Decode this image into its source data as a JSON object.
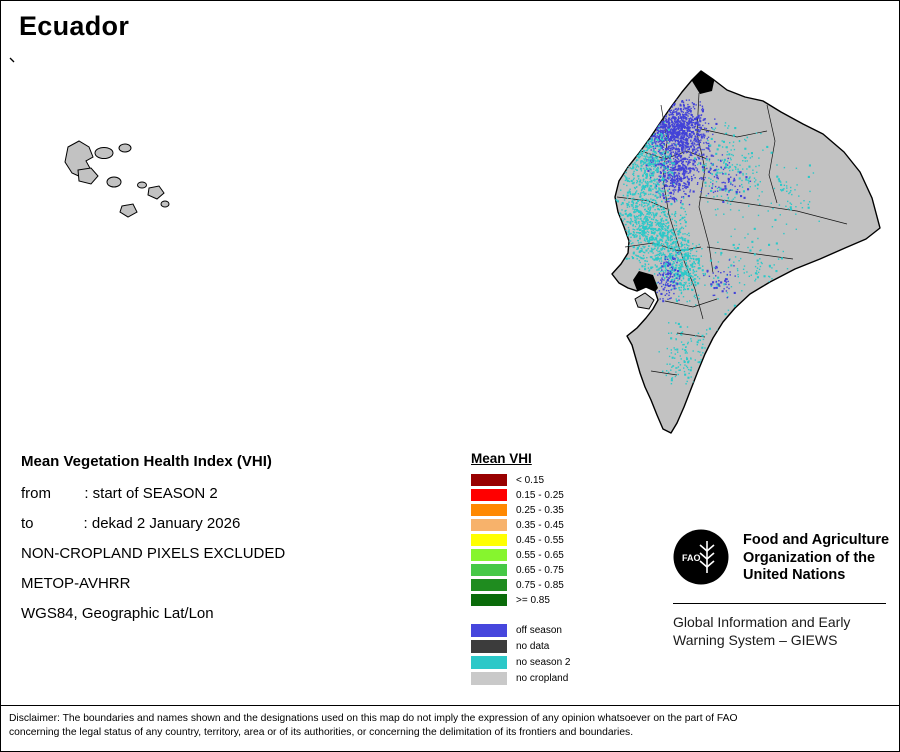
{
  "title": "Ecuador",
  "info": {
    "heading": "Mean Vegetation Health Index (VHI)",
    "lines": [
      "from        : start of SEASON 2",
      "to            : dekad 2 January 2026",
      "NON-CROPLAND PIXELS EXCLUDED",
      "METOP-AVHRR",
      "WGS84, Geographic Lat/Lon"
    ]
  },
  "legend": {
    "title": "Mean VHI",
    "classes": [
      {
        "label": "< 0.15",
        "color": "#990000"
      },
      {
        "label": "0.15 - 0.25",
        "color": "#ff0000"
      },
      {
        "label": "0.25 - 0.35",
        "color": "#ff8800"
      },
      {
        "label": "0.35 - 0.45",
        "color": "#f7b26b"
      },
      {
        "label": "0.45 - 0.55",
        "color": "#ffff00"
      },
      {
        "label": "0.55 - 0.65",
        "color": "#86f52e"
      },
      {
        "label": "0.65 - 0.75",
        "color": "#46c846"
      },
      {
        "label": "0.75 - 0.85",
        "color": "#1f8c1f"
      },
      {
        "label": ">= 0.85",
        "color": "#0a6b0a"
      }
    ],
    "extra": [
      {
        "label": "off season",
        "color": "#4646dd"
      },
      {
        "label": "no data",
        "color": "#3c3c3c"
      },
      {
        "label": "no season 2",
        "color": "#2cc8c8"
      },
      {
        "label": "no cropland",
        "color": "#c9c9c9"
      }
    ]
  },
  "map": {
    "land_color": "#c2c2c2",
    "border_color": "#000000",
    "off_season_color": "#4343d8",
    "no_season2_color": "#2cc8c8",
    "no_data_color": "#000000"
  },
  "fao": {
    "logo_text": "FAO",
    "org_name": "Food and Agriculture Organization of the United Nations",
    "giews": "Global Information and Early Warning System – GIEWS"
  },
  "disclaimer": {
    "line1": "Disclaimer: The boundaries and names shown and the designations used on this map do not imply the expression of any opinion whatsoever on the part of FAO",
    "line2": "concerning the legal status of any country, territory, area or of its authorities, or concerning the delimitation of its frontiers and boundaries."
  }
}
